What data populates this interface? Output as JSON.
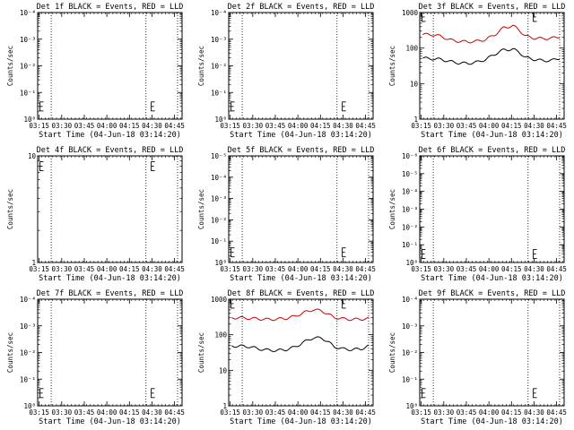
{
  "chart_data": [
    {
      "type": "line",
      "title": "Det 1f BLACK = Events, RED = LLD",
      "xlabel": "Start Time (04-Jun-18 03:14:20)",
      "ylabel": "Counts/sec",
      "ylog": true,
      "yticks": [
        {
          "v": 1,
          "label": "10⁰"
        },
        {
          "v": 10,
          "label": "10⁻¹"
        },
        {
          "v": 100,
          "label": "10⁻²"
        },
        {
          "v": 1000,
          "label": "10⁻³"
        },
        {
          "v": 10000,
          "label": "10⁻⁴"
        }
      ],
      "ylim": [
        1,
        10000
      ],
      "xlim": [
        0,
        96
      ],
      "xticks": [
        "03:15",
        "03:30",
        "03:45",
        "04:00",
        "04:15",
        "04:30",
        "04:45"
      ],
      "xtick_pos": [
        1,
        16,
        31,
        46,
        61,
        76,
        91
      ],
      "vlines": [
        9,
        72,
        93
      ],
      "marker_E": [
        {
          "x": 1.5,
          "y": 3
        },
        {
          "x": 75.5,
          "y": 3
        }
      ],
      "series": []
    },
    {
      "type": "line",
      "title": "Det 2f BLACK = Events, RED = LLD",
      "xlabel": "Start Time (04-Jun-18 03:14:20)",
      "ylabel": "Counts/sec",
      "ylog": true,
      "yticks": [
        {
          "v": 1,
          "label": "10⁰"
        },
        {
          "v": 10,
          "label": "10⁻¹"
        },
        {
          "v": 100,
          "label": "10⁻²"
        },
        {
          "v": 1000,
          "label": "10⁻³"
        },
        {
          "v": 10000,
          "label": "10⁻⁴"
        }
      ],
      "ylim": [
        1,
        10000
      ],
      "xlim": [
        0,
        96
      ],
      "xticks": [
        "03:15",
        "03:30",
        "03:45",
        "04:00",
        "04:15",
        "04:30",
        "04:45"
      ],
      "xtick_pos": [
        1,
        16,
        31,
        46,
        61,
        76,
        91
      ],
      "vlines": [
        9,
        72,
        93
      ],
      "marker_E": [
        {
          "x": 1.5,
          "y": 3
        },
        {
          "x": 75.5,
          "y": 3
        }
      ],
      "series": []
    },
    {
      "type": "line",
      "title": "Det 3f BLACK = Events, RED = LLD",
      "xlabel": "Start Time (04-Jun-18 03:14:20)",
      "ylabel": "Counts/sec",
      "ylog": true,
      "yticks": [
        {
          "v": 1,
          "label": "1"
        },
        {
          "v": 10,
          "label": "10"
        },
        {
          "v": 100,
          "label": "100"
        },
        {
          "v": 1000,
          "label": "1000"
        }
      ],
      "ylim": [
        1,
        1000
      ],
      "xlim": [
        0,
        96
      ],
      "xticks": [
        "03:15",
        "03:30",
        "03:45",
        "04:00",
        "04:15",
        "04:30",
        "04:45"
      ],
      "xtick_pos": [
        1,
        16,
        31,
        46,
        61,
        76,
        91
      ],
      "vlines": [
        9,
        72,
        93
      ],
      "marker_E": [
        {
          "x": 1.5,
          "y": 750
        },
        {
          "x": 75.5,
          "y": 750
        }
      ],
      "series": [
        {
          "color": "#cc0000",
          "x": [
            2,
            8,
            14,
            20,
            26,
            32,
            38,
            44,
            50,
            56,
            62,
            66,
            70,
            76,
            82,
            88,
            93
          ],
          "y": [
            240,
            240,
            215,
            170,
            155,
            150,
            155,
            175,
            240,
            380,
            420,
            330,
            220,
            190,
            185,
            190,
            210
          ]
        },
        {
          "color": "#000000",
          "x": [
            2,
            8,
            14,
            20,
            26,
            32,
            38,
            44,
            50,
            56,
            62,
            66,
            70,
            76,
            82,
            88,
            93
          ],
          "y": [
            52,
            50,
            48,
            42,
            38,
            37,
            40,
            48,
            68,
            90,
            92,
            78,
            55,
            48,
            44,
            45,
            52
          ]
        }
      ]
    },
    {
      "type": "line",
      "title": "Det 4f BLACK = Events, RED = LLD",
      "xlabel": "Start Time (04-Jun-18 03:14:20)",
      "ylabel": "Counts/sec",
      "ylog": true,
      "yticks": [
        {
          "v": 1,
          "label": "1"
        },
        {
          "v": 10,
          "label": "10"
        }
      ],
      "ylim": [
        1,
        10
      ],
      "xlim": [
        0,
        96
      ],
      "xticks": [
        "03:15",
        "03:30",
        "03:45",
        "04:00",
        "04:15",
        "04:30",
        "04:45"
      ],
      "xtick_pos": [
        1,
        16,
        31,
        46,
        61,
        76,
        91
      ],
      "vlines": [
        9,
        72,
        93
      ],
      "marker_E": [
        {
          "x": 1.5,
          "y": 8
        },
        {
          "x": 75.5,
          "y": 8
        }
      ],
      "series": []
    },
    {
      "type": "line",
      "title": "Det 5f BLACK = Events, RED = LLD",
      "xlabel": "Start Time (04-Jun-18 03:14:20)",
      "ylabel": "Counts/sec",
      "ylog": true,
      "yticks": [
        {
          "v": 1,
          "label": "10⁰"
        },
        {
          "v": 10,
          "label": "10⁻¹"
        },
        {
          "v": 100,
          "label": "10⁻²"
        },
        {
          "v": 1000,
          "label": "10⁻³"
        },
        {
          "v": 10000,
          "label": "10⁻⁴"
        },
        {
          "v": 100000,
          "label": "10⁻⁵"
        }
      ],
      "ylim": [
        1,
        100000
      ],
      "xlim": [
        0,
        96
      ],
      "xticks": [
        "03:15",
        "03:30",
        "03:45",
        "04:00",
        "04:15",
        "04:30",
        "04:45"
      ],
      "xtick_pos": [
        1,
        16,
        31,
        46,
        61,
        76,
        91
      ],
      "vlines": [
        9,
        72,
        93
      ],
      "marker_E": [
        {
          "x": 1.5,
          "y": 3
        },
        {
          "x": 75.5,
          "y": 3
        }
      ],
      "series": []
    },
    {
      "type": "line",
      "title": "Det 6f BLACK = Events, RED = LLD",
      "xlabel": "Start Time (04-Jun-18 03:14:20)",
      "ylabel": "Counts/sec",
      "ylog": true,
      "yticks": [
        {
          "v": 1,
          "label": "10⁰"
        },
        {
          "v": 10,
          "label": "10⁻¹"
        },
        {
          "v": 100,
          "label": "10⁻²"
        },
        {
          "v": 1000,
          "label": "10⁻³"
        },
        {
          "v": 10000,
          "label": "10⁻⁴"
        },
        {
          "v": 100000,
          "label": "10⁻⁵"
        },
        {
          "v": 1000000,
          "label": "10⁻⁶"
        }
      ],
      "ylim": [
        1,
        1000000
      ],
      "xlim": [
        0,
        96
      ],
      "xticks": [
        "03:15",
        "03:30",
        "03:45",
        "04:00",
        "04:15",
        "04:30",
        "04:45"
      ],
      "xtick_pos": [
        1,
        16,
        31,
        46,
        61,
        76,
        91
      ],
      "vlines": [
        9,
        72,
        93
      ],
      "marker_E": [
        {
          "x": 1.5,
          "y": 3
        },
        {
          "x": 75.5,
          "y": 3
        }
      ],
      "series": []
    },
    {
      "type": "line",
      "title": "Det 7f BLACK = Events, RED = LLD",
      "xlabel": "Start Time (04-Jun-18 03:14:20)",
      "ylabel": "Counts/sec",
      "ylog": true,
      "yticks": [
        {
          "v": 1,
          "label": "10⁰"
        },
        {
          "v": 10,
          "label": "10⁻¹"
        },
        {
          "v": 100,
          "label": "10⁻²"
        },
        {
          "v": 1000,
          "label": "10⁻³"
        },
        {
          "v": 10000,
          "label": "10⁻⁴"
        }
      ],
      "ylim": [
        1,
        10000
      ],
      "xlim": [
        0,
        96
      ],
      "xticks": [
        "03:15",
        "03:30",
        "03:45",
        "04:00",
        "04:15",
        "04:30",
        "04:45"
      ],
      "xtick_pos": [
        1,
        16,
        31,
        46,
        61,
        76,
        91
      ],
      "vlines": [
        9,
        72,
        93
      ],
      "marker_E": [
        {
          "x": 1.5,
          "y": 3
        },
        {
          "x": 75.5,
          "y": 3
        }
      ],
      "series": []
    },
    {
      "type": "line",
      "title": "Det 8f BLACK = Events, RED = LLD",
      "xlabel": "Start Time (04-Jun-18 03:14:20)",
      "ylabel": "Counts/sec",
      "ylog": true,
      "yticks": [
        {
          "v": 1,
          "label": "1"
        },
        {
          "v": 10,
          "label": "10"
        },
        {
          "v": 100,
          "label": "100"
        },
        {
          "v": 1000,
          "label": "1000"
        }
      ],
      "ylim": [
        1,
        1000
      ],
      "xlim": [
        0,
        96
      ],
      "xticks": [
        "03:15",
        "03:30",
        "03:45",
        "04:00",
        "04:15",
        "04:30",
        "04:45"
      ],
      "xtick_pos": [
        1,
        16,
        31,
        46,
        61,
        76,
        91
      ],
      "vlines": [
        9,
        72,
        93
      ],
      "marker_E": [
        {
          "x": 1.5,
          "y": 750
        },
        {
          "x": 75.5,
          "y": 750
        }
      ],
      "series": [
        {
          "color": "#cc0000",
          "x": [
            2,
            8,
            14,
            20,
            26,
            32,
            38,
            44,
            50,
            56,
            62,
            66,
            70,
            76,
            82,
            88,
            93
          ],
          "y": [
            300,
            300,
            290,
            280,
            270,
            275,
            290,
            330,
            420,
            510,
            470,
            380,
            310,
            280,
            270,
            275,
            285
          ]
        },
        {
          "color": "#000000",
          "x": [
            2,
            8,
            14,
            20,
            26,
            32,
            38,
            44,
            50,
            56,
            62,
            66,
            70,
            76,
            82,
            88,
            93
          ],
          "y": [
            48,
            48,
            46,
            40,
            37,
            36,
            38,
            45,
            62,
            82,
            80,
            64,
            46,
            40,
            38,
            40,
            48
          ]
        }
      ]
    },
    {
      "type": "line",
      "title": "Det 9f BLACK = Events, RED = LLD",
      "xlabel": "Start Time (04-Jun-18 03:14:20)",
      "ylabel": "Counts/sec",
      "ylog": true,
      "yticks": [
        {
          "v": 1,
          "label": "10⁰"
        },
        {
          "v": 10,
          "label": "10⁻¹"
        },
        {
          "v": 100,
          "label": "10⁻²"
        },
        {
          "v": 1000,
          "label": "10⁻³"
        },
        {
          "v": 10000,
          "label": "10⁻⁴"
        }
      ],
      "ylim": [
        1,
        10000
      ],
      "xlim": [
        0,
        96
      ],
      "xticks": [
        "03:15",
        "03:30",
        "03:45",
        "04:00",
        "04:15",
        "04:30",
        "04:45"
      ],
      "xtick_pos": [
        1,
        16,
        31,
        46,
        61,
        76,
        91
      ],
      "vlines": [
        9,
        72,
        93
      ],
      "marker_E": [
        {
          "x": 1.5,
          "y": 3
        },
        {
          "x": 75.5,
          "y": 3
        }
      ],
      "series": []
    }
  ]
}
